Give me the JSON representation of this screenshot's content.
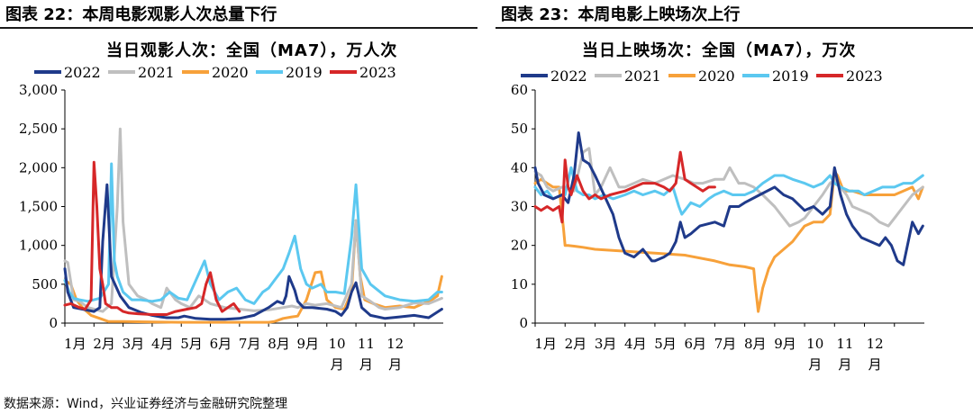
{
  "footer": "数据来源：Wind，兴业证券经济与金融研究院整理",
  "colors": {
    "2022": "#1f3a8a",
    "2021": "#bfbfbf",
    "2020": "#f7a13a",
    "2019": "#5bc8f0",
    "2023": "#d62728",
    "axis": "#000000"
  },
  "chart_data": [
    {
      "type": "line",
      "figure_title": "图表 22：本周电影观影人次总量下行",
      "title": "当日观影人次：全国（MA7），万人次",
      "ylim": [
        0,
        3000
      ],
      "yticks": [
        "0",
        "500",
        "1,000",
        "1,500",
        "2,000",
        "2,500",
        "3,000"
      ],
      "ytick_values": [
        0,
        500,
        1000,
        1500,
        2000,
        2500,
        3000
      ],
      "xticks": [
        "1月",
        "2月",
        "3月",
        "4月",
        "5月",
        "6月",
        "7月",
        "8月",
        "9月",
        "10月",
        "11月",
        "12月"
      ],
      "legend_position": "top",
      "series": [
        {
          "name": "2022",
          "x": [
            0,
            0.1,
            0.3,
            0.6,
            1.0,
            1.2,
            1.3,
            1.45,
            1.6,
            1.9,
            2.2,
            2.6,
            3.0,
            3.3,
            3.5,
            3.7,
            3.9,
            4.1,
            4.5,
            5.0,
            5.5,
            6.0,
            6.5,
            7.0,
            7.3,
            7.5,
            7.6,
            7.7,
            7.9,
            8.0,
            8.2,
            8.5,
            9.0,
            9.3,
            9.5,
            9.7,
            9.85,
            10.0,
            10.2,
            10.5,
            11.0,
            11.5,
            12.0,
            12.5,
            12.95
          ],
          "y": [
            700,
            400,
            200,
            180,
            150,
            200,
            1050,
            1780,
            600,
            350,
            200,
            140,
            100,
            80,
            70,
            70,
            70,
            90,
            60,
            50,
            50,
            60,
            100,
            200,
            280,
            250,
            350,
            600,
            420,
            280,
            200,
            200,
            180,
            150,
            100,
            200,
            400,
            520,
            200,
            100,
            60,
            80,
            100,
            70,
            180
          ]
        },
        {
          "name": "2021",
          "x": [
            0,
            0.1,
            0.3,
            0.5,
            0.8,
            1.0,
            1.3,
            1.6,
            1.8,
            1.9,
            2.0,
            2.2,
            2.5,
            2.8,
            3.0,
            3.3,
            3.5,
            3.8,
            4.0,
            4.3,
            4.6,
            5.0,
            5.5,
            6.0,
            6.5,
            7.0,
            7.5,
            7.8,
            8.0,
            8.3,
            8.6,
            9.0,
            9.5,
            9.85,
            10.0,
            10.2,
            10.5,
            10.8,
            11.0,
            11.5,
            12.0,
            12.5,
            12.95
          ],
          "y": [
            800,
            780,
            300,
            280,
            200,
            180,
            150,
            250,
            1500,
            2500,
            1300,
            500,
            350,
            300,
            250,
            200,
            450,
            300,
            250,
            200,
            350,
            250,
            200,
            180,
            160,
            170,
            200,
            220,
            200,
            250,
            230,
            250,
            200,
            500,
            1320,
            350,
            280,
            200,
            180,
            200,
            260,
            250,
            320
          ]
        },
        {
          "name": "2020",
          "x": [
            0,
            0.2,
            0.4,
            0.6,
            0.9,
            1.2,
            1.5,
            2.0,
            3.0,
            4.0,
            5.0,
            6.0,
            6.5,
            7.0,
            7.2,
            7.5,
            7.8,
            8.0,
            8.3,
            8.6,
            8.8,
            9.0,
            9.3,
            9.6,
            9.85,
            10.0,
            10.15,
            10.3,
            10.6,
            11.0,
            11.5,
            12.0,
            12.3,
            12.6,
            12.8,
            12.95
          ],
          "y": [
            550,
            500,
            300,
            200,
            100,
            60,
            20,
            20,
            15,
            10,
            10,
            10,
            10,
            10,
            20,
            60,
            80,
            90,
            300,
            650,
            660,
            300,
            200,
            180,
            400,
            1320,
            600,
            300,
            250,
            200,
            220,
            200,
            250,
            300,
            350,
            600
          ]
        },
        {
          "name": "2019",
          "x": [
            0,
            0.15,
            0.3,
            0.5,
            0.8,
            1.0,
            1.2,
            1.5,
            1.6,
            1.7,
            1.8,
            2.0,
            2.3,
            2.6,
            3.0,
            3.3,
            3.6,
            3.9,
            4.2,
            4.5,
            4.8,
            5.0,
            5.3,
            5.6,
            5.9,
            6.2,
            6.5,
            6.8,
            7.0,
            7.2,
            7.5,
            7.7,
            7.9,
            8.1,
            8.3,
            8.5,
            8.8,
            9.0,
            9.3,
            9.6,
            9.85,
            10.0,
            10.2,
            10.5,
            11.0,
            11.5,
            12.0,
            12.5,
            12.8,
            12.95
          ],
          "y": [
            550,
            400,
            320,
            300,
            280,
            300,
            320,
            500,
            2050,
            800,
            600,
            400,
            300,
            300,
            280,
            300,
            400,
            320,
            300,
            550,
            800,
            500,
            300,
            400,
            450,
            300,
            250,
            400,
            450,
            550,
            700,
            900,
            1120,
            700,
            500,
            450,
            500,
            400,
            400,
            380,
            1100,
            1780,
            700,
            500,
            350,
            300,
            280,
            300,
            400,
            400
          ]
        },
        {
          "name": "2023",
          "x": [
            0,
            0.2,
            0.5,
            0.7,
            0.9,
            1.0,
            1.1,
            1.2,
            1.3,
            1.4,
            1.6,
            1.8,
            2.0,
            2.2,
            2.5,
            3.0,
            3.5,
            3.8,
            4.2,
            4.5,
            4.7,
            4.85,
            5.0,
            5.2,
            5.4,
            5.6,
            5.8,
            6.0
          ],
          "y": [
            230,
            250,
            200,
            180,
            300,
            2070,
            1500,
            700,
            500,
            250,
            200,
            200,
            150,
            130,
            120,
            110,
            110,
            150,
            180,
            200,
            250,
            500,
            650,
            300,
            150,
            200,
            250,
            150
          ]
        }
      ]
    },
    {
      "type": "line",
      "figure_title": "图表 23：本周电影上映场次上行",
      "title": "当日上映场次：全国（MA7），万次",
      "ylim": [
        0,
        60
      ],
      "yticks": [
        "0",
        "10",
        "20",
        "30",
        "40",
        "50",
        "60"
      ],
      "ytick_values": [
        0,
        10,
        20,
        30,
        40,
        50,
        60
      ],
      "xticks": [
        "1月",
        "2月",
        "3月",
        "4月",
        "5月",
        "6月",
        "7月",
        "8月",
        "9月",
        "10月",
        "11月",
        "12月"
      ],
      "legend_position": "top",
      "series": [
        {
          "name": "2022",
          "x": [
            0,
            0.1,
            0.3,
            0.6,
            0.9,
            1.1,
            1.3,
            1.45,
            1.6,
            1.8,
            2.0,
            2.3,
            2.6,
            2.8,
            3.0,
            3.3,
            3.6,
            3.9,
            4.0,
            4.3,
            4.5,
            4.7,
            4.85,
            5.0,
            5.2,
            5.5,
            6.0,
            6.3,
            6.5,
            6.8,
            7.0,
            7.5,
            8.0,
            8.3,
            8.6,
            9.0,
            9.3,
            9.6,
            9.85,
            10.0,
            10.2,
            10.4,
            10.6,
            10.9,
            11.2,
            11.5,
            11.7,
            11.9,
            12.1,
            12.3,
            12.6,
            12.8,
            12.95
          ],
          "y": [
            40,
            36,
            33,
            32,
            33,
            31,
            38,
            49,
            42,
            41,
            38,
            33,
            28,
            22,
            18,
            17,
            19,
            16,
            16,
            17,
            18,
            21,
            26,
            22,
            23,
            25,
            26,
            25,
            30,
            30,
            31,
            33,
            35,
            33,
            32,
            29,
            30,
            28,
            30,
            40,
            33,
            28,
            25,
            22,
            21,
            20,
            22,
            20,
            16,
            15,
            26,
            23,
            25
          ]
        },
        {
          "name": "2021",
          "x": [
            0,
            0.2,
            0.4,
            0.6,
            0.9,
            1.0,
            1.3,
            1.6,
            1.8,
            2.0,
            2.2,
            2.5,
            2.8,
            3.0,
            3.3,
            3.6,
            4.0,
            4.3,
            4.6,
            5.0,
            5.3,
            5.6,
            6.0,
            6.3,
            6.5,
            6.8,
            7.0,
            7.3,
            7.6,
            8.0,
            8.3,
            8.5,
            8.8,
            9.0,
            9.3,
            9.6,
            9.85,
            10.0,
            10.2,
            10.4,
            10.6,
            10.9,
            11.2,
            11.5,
            11.8,
            12.0,
            12.3,
            12.6,
            12.95
          ],
          "y": [
            39,
            38,
            35,
            34,
            35,
            35,
            34,
            44,
            45,
            33,
            35,
            40,
            35,
            35,
            36,
            37,
            36,
            37,
            38,
            37,
            36,
            36,
            37,
            37,
            40,
            36,
            36,
            35,
            33,
            30,
            27,
            25,
            26,
            27,
            30,
            33,
            36,
            37,
            35,
            33,
            30,
            29,
            28,
            26,
            25,
            27,
            30,
            33,
            35
          ]
        },
        {
          "name": "2020",
          "x": [
            0,
            0.2,
            0.4,
            0.6,
            0.8,
            0.95,
            1.0,
            1.05,
            1.1,
            1.3,
            1.6,
            2.0,
            3.0,
            4.0,
            5.0,
            6.0,
            6.5,
            7.0,
            7.3,
            7.35,
            7.45,
            7.6,
            7.8,
            8.0,
            8.3,
            8.6,
            8.8,
            9.0,
            9.3,
            9.6,
            9.85,
            10.0,
            10.1,
            10.3,
            10.6,
            11.0,
            11.5,
            12.0,
            12.3,
            12.6,
            12.8,
            12.95
          ],
          "y": [
            36,
            37,
            36,
            35,
            35,
            24,
            20,
            20,
            20,
            19.8,
            19.5,
            19,
            18.5,
            18,
            17.5,
            16,
            15,
            14.5,
            14,
            10,
            3,
            9,
            14,
            17,
            19,
            21,
            23,
            25,
            26,
            26,
            28,
            39,
            38,
            34,
            34,
            33,
            33,
            33,
            34,
            35,
            32,
            35
          ]
        },
        {
          "name": "2019",
          "x": [
            0,
            0.2,
            0.4,
            0.6,
            0.9,
            1.0,
            1.2,
            1.4,
            1.6,
            1.8,
            2.0,
            2.3,
            2.6,
            3.0,
            3.3,
            3.6,
            4.0,
            4.3,
            4.6,
            4.8,
            4.9,
            5.0,
            5.2,
            5.5,
            5.8,
            6.0,
            6.3,
            6.6,
            7.0,
            7.3,
            7.6,
            8.0,
            8.3,
            8.6,
            9.0,
            9.3,
            9.6,
            9.85,
            10.0,
            10.2,
            10.5,
            10.8,
            11.0,
            11.3,
            11.6,
            12.0,
            12.3,
            12.6,
            12.95
          ],
          "y": [
            35,
            33,
            34,
            32,
            33,
            33,
            40,
            34,
            33,
            33,
            32,
            33,
            32,
            33,
            34,
            33,
            34,
            33,
            35,
            30,
            28,
            29,
            31,
            30,
            32,
            33,
            34,
            33,
            33,
            34,
            36,
            38,
            38,
            37,
            36,
            35,
            36,
            38,
            36,
            35,
            34,
            34,
            33,
            34,
            35,
            35,
            36,
            36,
            38
          ]
        },
        {
          "name": "2023",
          "x": [
            0,
            0.2,
            0.4,
            0.6,
            0.8,
            0.9,
            1.0,
            1.1,
            1.2,
            1.4,
            1.6,
            1.8,
            2.0,
            2.2,
            2.5,
            3.0,
            3.3,
            3.6,
            4.0,
            4.3,
            4.5,
            4.7,
            4.85,
            5.0,
            5.2,
            5.4,
            5.6,
            5.8,
            6.0
          ],
          "y": [
            30,
            29,
            30,
            29,
            30,
            26,
            42,
            35,
            33,
            38,
            34,
            32,
            33,
            32,
            33,
            34,
            35,
            36,
            36,
            35,
            34,
            36,
            44,
            37,
            36,
            35,
            34,
            35,
            35
          ]
        }
      ]
    }
  ]
}
